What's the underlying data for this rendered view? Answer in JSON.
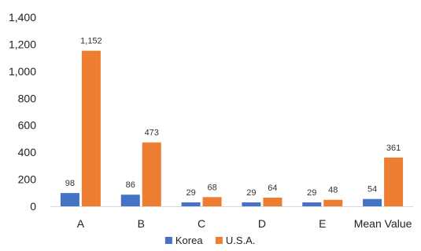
{
  "chart_data": {
    "type": "bar",
    "categories": [
      "A",
      "B",
      "C",
      "D",
      "E",
      "Mean Value"
    ],
    "series": [
      {
        "name": "Korea",
        "values": [
          98,
          86,
          29,
          29,
          29,
          54
        ],
        "labels": [
          "98",
          "86",
          "29",
          "29",
          "29",
          "54"
        ],
        "color": "#4472C4"
      },
      {
        "name": "U.S.A.",
        "values": [
          1152,
          473,
          68,
          64,
          48,
          361
        ],
        "labels": [
          "1,152",
          "473",
          "68",
          "64",
          "48",
          "361"
        ],
        "color": "#ED7D31"
      }
    ],
    "y_ticks": [
      0,
      200,
      400,
      600,
      800,
      1000,
      1200,
      1400
    ],
    "y_tick_labels": [
      "0",
      "200",
      "400",
      "600",
      "800",
      "1,000",
      "1,200",
      "1,400"
    ],
    "ylim": [
      0,
      1400
    ],
    "grid": false,
    "legend_position": "bottom"
  }
}
